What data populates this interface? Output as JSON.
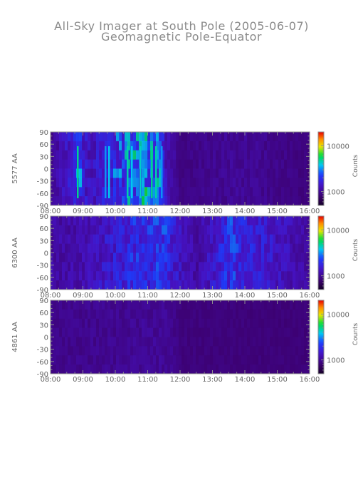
{
  "title": "All-Sky Imager at South Pole (2005-06-07)",
  "subtitle": "Geomagnetic Pole-Equator",
  "chart_data": {
    "type": "heatmap",
    "x_ticks": [
      "08:00",
      "09:00",
      "10:00",
      "11:00",
      "12:00",
      "13:00",
      "14:00",
      "15:00",
      "16:00"
    ],
    "xlim": [
      "08:00",
      "16:00"
    ],
    "y_ticks": [
      90,
      60,
      30,
      0,
      -30,
      -60,
      -90
    ],
    "ylim": [
      -90,
      90
    ],
    "colorbar": {
      "label": "Counts",
      "scale": "log",
      "ticks": [
        1000,
        10000
      ]
    },
    "panels": [
      {
        "ylabel": "5577 AA",
        "intensity": [
          {
            "t": "08:00",
            "level": 0.2
          },
          {
            "t": "08:50",
            "level": 0.55
          },
          {
            "t": "09:10",
            "level": 0.35
          },
          {
            "t": "10:20",
            "level": 0.6
          },
          {
            "t": "10:45",
            "level": 0.75
          },
          {
            "t": "11:15",
            "level": 0.7
          },
          {
            "t": "11:35",
            "level": 0.3
          },
          {
            "t": "12:00",
            "level": 0.12
          },
          {
            "t": "13:00",
            "level": 0.18
          },
          {
            "t": "14:00",
            "level": 0.2
          },
          {
            "t": "15:00",
            "level": 0.15
          },
          {
            "t": "16:00",
            "level": 0.1
          }
        ]
      },
      {
        "ylabel": "6300 AA",
        "intensity": [
          {
            "t": "08:00",
            "level": 0.25
          },
          {
            "t": "09:00",
            "level": 0.3
          },
          {
            "t": "10:30",
            "level": 0.55
          },
          {
            "t": "11:30",
            "level": 0.6
          },
          {
            "t": "12:00",
            "level": 0.35
          },
          {
            "t": "12:30",
            "level": 0.25
          },
          {
            "t": "13:30",
            "level": 0.6
          },
          {
            "t": "14:30",
            "level": 0.45
          },
          {
            "t": "15:30",
            "level": 0.3
          },
          {
            "t": "16:00",
            "level": 0.2
          }
        ]
      },
      {
        "ylabel": "4861 AA",
        "intensity": [
          {
            "t": "08:00",
            "level": 0.15
          },
          {
            "t": "10:00",
            "level": 0.18
          },
          {
            "t": "11:30",
            "level": 0.2
          },
          {
            "t": "12:00",
            "level": 0.1
          },
          {
            "t": "16:00",
            "level": 0.08
          }
        ]
      }
    ]
  }
}
